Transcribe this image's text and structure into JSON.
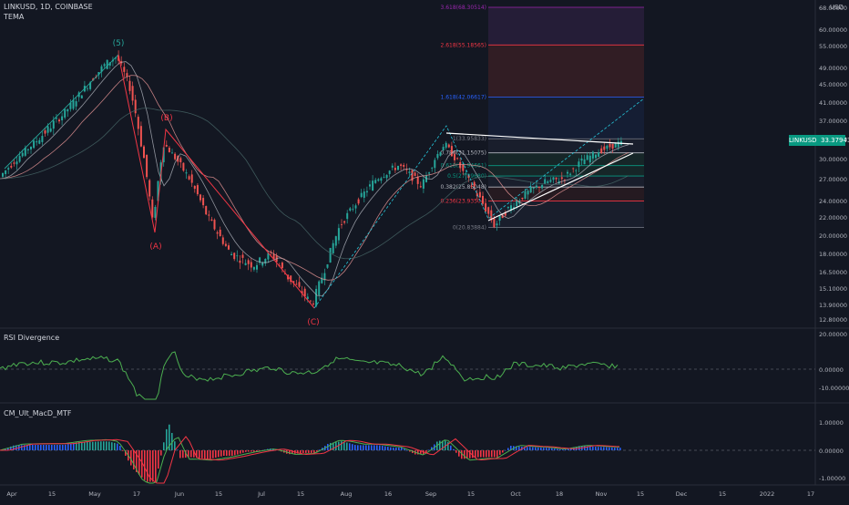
{
  "header": {
    "symbol": "LINKUSD, 1D, COINBASE",
    "indicator": "TEMA"
  },
  "currency": "USD",
  "last_price": {
    "label": "LINKUSD",
    "value": "33.37943",
    "color": "#089981"
  },
  "price_axis": [
    "68.00000",
    "60.00000",
    "55.00000",
    "49.00000",
    "45.00000",
    "41.00000",
    "37.00000",
    "34.00000",
    "30.00000",
    "27.00000",
    "24.00000",
    "22.00000",
    "20.00000",
    "18.00000",
    "16.50000",
    "15.10000",
    "13.90000",
    "12.80000"
  ],
  "fib_levels": [
    {
      "label": "3.618(68.30514)",
      "price": 68.3,
      "color": "#9c27b0"
    },
    {
      "label": "2.618(55.18565)",
      "price": 55.19,
      "color": "#f23645"
    },
    {
      "label": "1.618(42.06617)",
      "price": 42.07,
      "color": "#2962ff"
    },
    {
      "label": "1(33.95833)",
      "price": 33.96,
      "color": "#787b86"
    },
    {
      "label": "0.786(31.15075)",
      "price": 31.15,
      "color": "#b2b5be"
    },
    {
      "label": "0.618(28.94661)",
      "price": 28.95,
      "color": "#089981"
    },
    {
      "label": "0.5(27.39680)",
      "price": 27.4,
      "color": "#089981"
    },
    {
      "label": "0.382(25.85048)",
      "price": 25.85,
      "color": "#b2b5be"
    },
    {
      "label": "0.236(23.93504)",
      "price": 23.94,
      "color": "#f23645"
    },
    {
      "label": "0(20.83884)",
      "price": 20.84,
      "color": "#787b86"
    }
  ],
  "wave_labels": [
    {
      "text": "(5)",
      "color": "#26a69a"
    },
    {
      "text": "(B)",
      "color": "#f23645"
    },
    {
      "text": "(A)",
      "color": "#f23645"
    },
    {
      "text": "(C)",
      "color": "#f23645"
    }
  ],
  "rsi_pane": {
    "title": "RSI Divergence",
    "axis": [
      "20.00000",
      "0.00000",
      "-10.00000"
    ]
  },
  "macd_pane": {
    "title": "CM_Ult_MacD_MTF",
    "axis": [
      "1.00000",
      "0.00000",
      "-1.00000"
    ]
  },
  "time_axis": [
    "Apr",
    "15",
    "May",
    "17",
    "Jun",
    "15",
    "Jul",
    "15",
    "Aug",
    "16",
    "Sep",
    "15",
    "Oct",
    "18",
    "Nov",
    "15",
    "Dec",
    "15",
    "2022",
    "17"
  ],
  "colors": {
    "up": "#26a69a",
    "down": "#ef5350",
    "background": "#131722",
    "grid": "#1e222d"
  }
}
